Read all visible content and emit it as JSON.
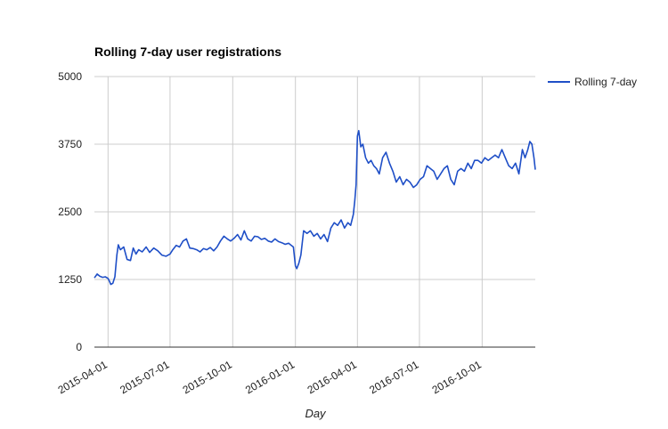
{
  "chart_data": {
    "type": "line",
    "title": "Rolling 7-day user registrations",
    "xlabel": "Day",
    "ylabel": "",
    "ylim": [
      0,
      5000
    ],
    "yticks": [
      0,
      1250,
      2500,
      3750,
      5000
    ],
    "ytick_labels": [
      "0",
      "1250",
      "2500",
      "3750",
      "5000"
    ],
    "xlim": [
      "2015-03-12",
      "2016-12-18"
    ],
    "xticks": [
      "2015-04-01",
      "2015-07-01",
      "2015-10-01",
      "2016-01-01",
      "2016-04-01",
      "2016-07-01",
      "2016-10-01"
    ],
    "xtick_labels": [
      "2015-04-01",
      "2015-07-01",
      "2015-10-01",
      "2016-01-01",
      "2016-04-01",
      "2016-07-01",
      "2016-10-01"
    ],
    "grid": true,
    "legend_position": "right",
    "colors": {
      "series": "#1f4fc7",
      "grid": "#cccccc",
      "axis": "#333333"
    },
    "series": [
      {
        "name": "Rolling 7-day",
        "x": [
          "2015-03-12",
          "2015-03-16",
          "2015-03-20",
          "2015-03-24",
          "2015-03-28",
          "2015-04-01",
          "2015-04-03",
          "2015-04-05",
          "2015-04-08",
          "2015-04-11",
          "2015-04-14",
          "2015-04-16",
          "2015-04-19",
          "2015-04-24",
          "2015-04-29",
          "2015-05-04",
          "2015-05-08",
          "2015-05-12",
          "2015-05-16",
          "2015-05-21",
          "2015-05-27",
          "2015-06-01",
          "2015-06-07",
          "2015-06-13",
          "2015-06-19",
          "2015-06-25",
          "2015-07-01",
          "2015-07-05",
          "2015-07-10",
          "2015-07-15",
          "2015-07-20",
          "2015-07-25",
          "2015-07-30",
          "2015-08-04",
          "2015-08-09",
          "2015-08-14",
          "2015-08-19",
          "2015-08-24",
          "2015-08-29",
          "2015-09-03",
          "2015-09-08",
          "2015-09-13",
          "2015-09-18",
          "2015-09-23",
          "2015-09-28",
          "2015-10-03",
          "2015-10-08",
          "2015-10-13",
          "2015-10-18",
          "2015-10-23",
          "2015-10-28",
          "2015-11-02",
          "2015-11-07",
          "2015-11-12",
          "2015-11-17",
          "2015-11-22",
          "2015-11-27",
          "2015-12-02",
          "2015-12-07",
          "2015-12-12",
          "2015-12-17",
          "2015-12-22",
          "2015-12-26",
          "2015-12-29",
          "2016-01-01",
          "2016-01-03",
          "2016-01-06",
          "2016-01-09",
          "2016-01-13",
          "2016-01-18",
          "2016-01-23",
          "2016-01-28",
          "2016-02-02",
          "2016-02-07",
          "2016-02-12",
          "2016-02-17",
          "2016-02-22",
          "2016-02-27",
          "2016-03-03",
          "2016-03-08",
          "2016-03-13",
          "2016-03-18",
          "2016-03-22",
          "2016-03-26",
          "2016-03-28",
          "2016-03-30",
          "2016-04-01",
          "2016-04-03",
          "2016-04-06",
          "2016-04-09",
          "2016-04-13",
          "2016-04-17",
          "2016-04-21",
          "2016-04-25",
          "2016-04-29",
          "2016-05-03",
          "2016-05-08",
          "2016-05-13",
          "2016-05-18",
          "2016-05-23",
          "2016-05-28",
          "2016-06-02",
          "2016-06-07",
          "2016-06-12",
          "2016-06-17",
          "2016-06-22",
          "2016-06-27",
          "2016-07-02",
          "2016-07-07",
          "2016-07-12",
          "2016-07-17",
          "2016-07-22",
          "2016-07-27",
          "2016-08-01",
          "2016-08-06",
          "2016-08-11",
          "2016-08-16",
          "2016-08-21",
          "2016-08-26",
          "2016-08-31",
          "2016-09-05",
          "2016-09-10",
          "2016-09-15",
          "2016-09-20",
          "2016-09-25",
          "2016-09-30",
          "2016-10-05",
          "2016-10-10",
          "2016-10-15",
          "2016-10-20",
          "2016-10-25",
          "2016-10-30",
          "2016-11-04",
          "2016-11-09",
          "2016-11-14",
          "2016-11-19",
          "2016-11-24",
          "2016-11-29",
          "2016-12-03",
          "2016-12-07",
          "2016-12-10",
          "2016-12-13",
          "2016-12-16",
          "2016-12-18"
        ],
        "values": [
          1280,
          1350,
          1310,
          1290,
          1300,
          1270,
          1220,
          1160,
          1180,
          1300,
          1700,
          1890,
          1800,
          1850,
          1620,
          1600,
          1830,
          1720,
          1800,
          1760,
          1850,
          1750,
          1830,
          1780,
          1700,
          1680,
          1720,
          1800,
          1880,
          1850,
          1960,
          2000,
          1830,
          1820,
          1800,
          1760,
          1820,
          1800,
          1840,
          1780,
          1850,
          1960,
          2050,
          2000,
          1960,
          2010,
          2080,
          1980,
          2150,
          2000,
          1960,
          2050,
          2040,
          1990,
          2010,
          1960,
          1940,
          2000,
          1950,
          1930,
          1900,
          1920,
          1880,
          1850,
          1500,
          1450,
          1550,
          1700,
          2150,
          2100,
          2150,
          2050,
          2100,
          2000,
          2080,
          1950,
          2200,
          2300,
          2250,
          2350,
          2200,
          2300,
          2250,
          2450,
          2700,
          3000,
          3900,
          4000,
          3700,
          3750,
          3500,
          3400,
          3450,
          3350,
          3300,
          3200,
          3500,
          3600,
          3400,
          3250,
          3050,
          3150,
          3000,
          3100,
          3050,
          2950,
          3000,
          3100,
          3150,
          3350,
          3300,
          3250,
          3100,
          3200,
          3300,
          3350,
          3100,
          3000,
          3250,
          3300,
          3250,
          3400,
          3300,
          3450,
          3450,
          3400,
          3500,
          3450,
          3500,
          3550,
          3500,
          3650,
          3500,
          3350,
          3300,
          3400,
          3200,
          3650,
          3500,
          3650,
          3800,
          3750,
          3500,
          3280
        ]
      }
    ]
  }
}
